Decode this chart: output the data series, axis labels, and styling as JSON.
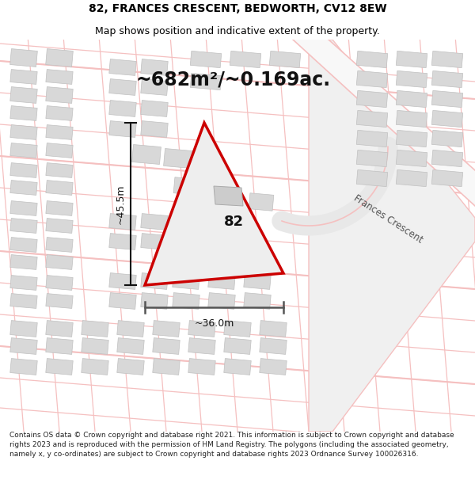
{
  "title_line1": "82, FRANCES CRESCENT, BEDWORTH, CV12 8EW",
  "title_line2": "Map shows position and indicative extent of the property.",
  "area_label": "~682m²/~0.169ac.",
  "property_number": "82",
  "dim_height": "~45.5m",
  "dim_width": "~36.0m",
  "street_label": "Frances Crescent",
  "footer_text": "Contains OS data © Crown copyright and database right 2021. This information is subject to Crown copyright and database rights 2023 and is reproduced with the permission of HM Land Registry. The polygons (including the associated geometry, namely x, y co-ordinates) are subject to Crown copyright and database rights 2023 Ordnance Survey 100026316.",
  "bg_color": "#ffffff",
  "map_bg": "#ffffff",
  "road_color": "#f5c0c0",
  "building_color": "#d8d8d8",
  "building_edge": "#c0c0c0",
  "plot_color": "#eeeeee",
  "boundary_color": "#cc0000",
  "dim_color": "#111111",
  "title_color": "#000000",
  "street_label_color": "#555555",
  "title_fontsize": 10,
  "subtitle_fontsize": 9,
  "area_fontsize": 17,
  "label_fontsize": 13,
  "footer_fontsize": 6.5
}
